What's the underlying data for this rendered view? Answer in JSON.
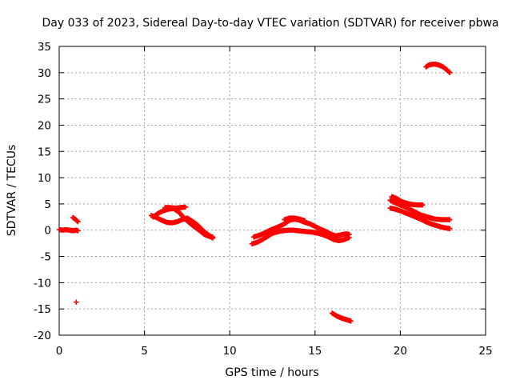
{
  "chart_data": {
    "type": "scatter",
    "title": "Day 033 of 2023, Sidereal Day-to-day VTEC variation (SDTVAR) for receiver pbwa",
    "xlabel": "GPS time / hours",
    "ylabel": "SDTVAR / TECUs",
    "xlim": [
      0,
      25
    ],
    "ylim": [
      -20,
      35
    ],
    "xticks": [
      0,
      5,
      10,
      15,
      20,
      25
    ],
    "yticks": [
      -20,
      -15,
      -10,
      -5,
      0,
      5,
      10,
      15,
      20,
      25,
      30,
      35
    ],
    "grid": true,
    "marker": "+",
    "series": [
      {
        "name": "SDTVAR",
        "color": "#ff0000",
        "segments": [
          {
            "x": [
              0.0,
              0.2,
              0.4,
              0.6,
              0.8,
              1.0,
              1.1
            ],
            "y": [
              0.1,
              0.0,
              0.1,
              0.0,
              -0.1,
              0.0,
              -0.1
            ]
          },
          {
            "x": [
              0.8,
              0.9,
              1.0,
              1.1
            ],
            "y": [
              2.4,
              2.2,
              1.9,
              1.6
            ]
          },
          {
            "x": [
              1.0
            ],
            "y": [
              -13.7
            ]
          },
          {
            "x": [
              5.4,
              5.7,
              6.0,
              6.3,
              6.6,
              6.9,
              7.2,
              7.5,
              7.8,
              8.1,
              8.4,
              8.7,
              9.0
            ],
            "y": [
              2.8,
              2.4,
              1.9,
              1.5,
              1.4,
              1.6,
              2.0,
              2.3,
              1.7,
              1.0,
              0.0,
              -0.8,
              -1.5
            ]
          },
          {
            "x": [
              5.5,
              5.8,
              6.1,
              6.4,
              6.7,
              7.0,
              7.3,
              7.6,
              7.9,
              8.2,
              8.5,
              8.8,
              9.0
            ],
            "y": [
              2.5,
              3.2,
              3.7,
              4.0,
              4.1,
              3.5,
              2.4,
              1.5,
              0.7,
              0.0,
              -0.8,
              -1.2,
              -1.3
            ]
          },
          {
            "x": [
              6.2,
              6.5,
              6.8,
              7.1,
              7.4
            ],
            "y": [
              4.3,
              4.3,
              4.2,
              4.3,
              4.4
            ]
          },
          {
            "x": [
              11.3,
              11.6,
              11.9,
              12.2,
              12.5,
              12.8,
              13.1,
              13.4,
              13.7,
              14.0,
              14.3,
              14.6,
              14.9,
              15.2,
              15.5,
              15.8,
              16.1,
              16.4,
              16.7,
              17.0
            ],
            "y": [
              -2.6,
              -2.3,
              -1.8,
              -1.2,
              -0.6,
              -0.3,
              -0.1,
              0.0,
              0.0,
              -0.1,
              -0.2,
              -0.3,
              -0.4,
              -0.6,
              -0.9,
              -1.3,
              -1.8,
              -2.0,
              -1.8,
              -1.4
            ]
          },
          {
            "x": [
              11.4,
              11.7,
              12.0,
              12.3,
              12.6,
              12.9,
              13.2,
              13.5,
              13.8,
              14.1,
              14.4,
              14.7,
              15.0,
              15.3,
              15.6,
              15.9,
              16.2,
              16.5,
              16.8,
              17.0
            ],
            "y": [
              -1.3,
              -1.0,
              -0.6,
              -0.1,
              0.3,
              0.7,
              1.2,
              1.9,
              2.1,
              1.9,
              1.5,
              1.2,
              0.7,
              0.2,
              -0.2,
              -0.7,
              -1.1,
              -0.9,
              -0.7,
              -0.8
            ]
          },
          {
            "x": [
              13.2,
              13.5,
              13.8,
              14.1,
              14.4
            ],
            "y": [
              2.0,
              2.3,
              2.3,
              2.1,
              1.8
            ]
          },
          {
            "x": [
              16.0,
              16.3,
              16.6,
              16.9,
              17.1
            ],
            "y": [
              -15.8,
              -16.4,
              -16.8,
              -17.1,
              -17.3
            ]
          },
          {
            "x": [
              19.4,
              19.7,
              20.0,
              20.3,
              20.6,
              20.9,
              21.2,
              21.5,
              21.8,
              22.1,
              22.4,
              22.7,
              22.9
            ],
            "y": [
              5.7,
              5.2,
              4.8,
              4.4,
              3.9,
              3.4,
              2.9,
              2.6,
              2.3,
              2.1,
              2.0,
              2.0,
              2.0
            ]
          },
          {
            "x": [
              19.4,
              19.7,
              20.0,
              20.3,
              20.6,
              20.9,
              21.2,
              21.5,
              21.8,
              22.1,
              22.4,
              22.7,
              22.9
            ],
            "y": [
              4.2,
              4.0,
              3.7,
              3.3,
              2.9,
              2.5,
              2.1,
              1.6,
              1.2,
              0.9,
              0.6,
              0.4,
              0.3
            ]
          },
          {
            "x": [
              19.5,
              19.8,
              20.1,
              20.4,
              20.7,
              21.0,
              21.3
            ],
            "y": [
              6.4,
              6.0,
              5.4,
              5.1,
              4.9,
              4.8,
              4.8
            ]
          },
          {
            "x": [
              21.5,
              21.7,
              21.9,
              22.1,
              22.3,
              22.5,
              22.7,
              22.9
            ],
            "y": [
              31.1,
              31.5,
              31.6,
              31.6,
              31.4,
              31.1,
              30.6,
              30.0
            ]
          }
        ]
      }
    ]
  }
}
